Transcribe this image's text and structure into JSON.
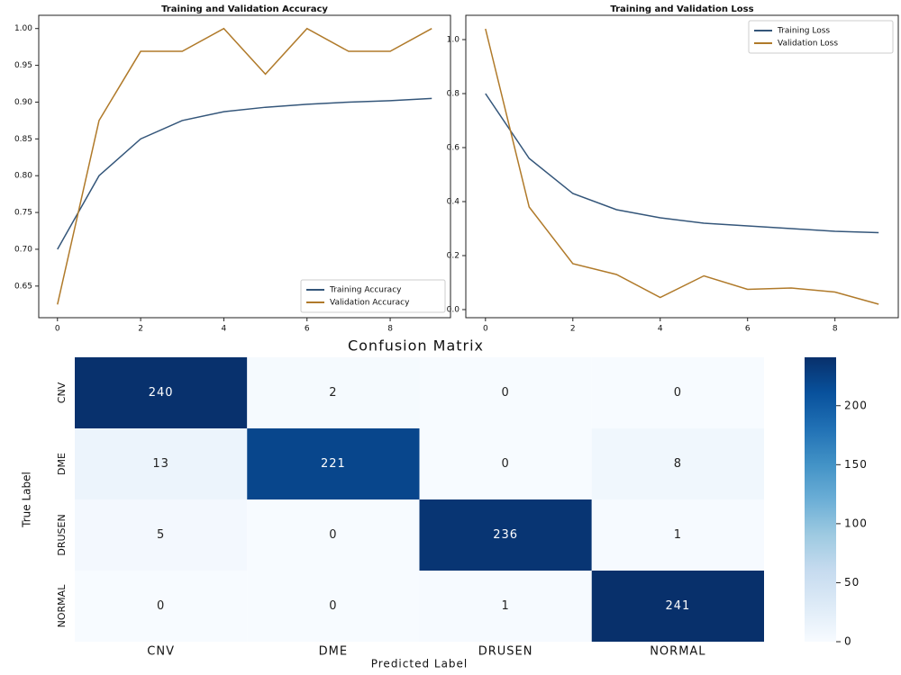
{
  "chart_data": [
    {
      "type": "line",
      "title": "Training and Validation Accuracy",
      "x": [
        0,
        1,
        2,
        3,
        4,
        5,
        6,
        7,
        8,
        9
      ],
      "series": [
        {
          "name": "Training Accuracy",
          "color": "#34567a",
          "values": [
            0.7,
            0.8,
            0.85,
            0.875,
            0.887,
            0.893,
            0.897,
            0.9,
            0.902,
            0.905
          ]
        },
        {
          "name": "Validation Accuracy",
          "color": "#b07a2a",
          "values": [
            0.625,
            0.875,
            0.969,
            0.969,
            1.0,
            0.938,
            1.0,
            0.969,
            0.969,
            1.0
          ]
        }
      ],
      "xlim": [
        -0.45,
        9.45
      ],
      "xticks": [
        0,
        2,
        4,
        6,
        8
      ],
      "ylim": [
        0.607,
        1.018
      ],
      "yticks": [
        0.65,
        {
          "value": 0.7,
          "label": "0.70"
        },
        0.75,
        {
          "value": 0.8,
          "label": "0.80"
        },
        0.85,
        {
          "value": 0.9,
          "label": "0.90"
        },
        0.95,
        {
          "value": 1.0,
          "label": "1.00"
        }
      ],
      "legend": "lower right"
    },
    {
      "type": "line",
      "title": "Training and Validation Loss",
      "x": [
        0,
        1,
        2,
        3,
        4,
        5,
        6,
        7,
        8,
        9
      ],
      "series": [
        {
          "name": "Training Loss",
          "color": "#34567a",
          "values": [
            0.8,
            0.56,
            0.43,
            0.37,
            0.34,
            0.32,
            0.31,
            0.3,
            0.29,
            0.285
          ]
        },
        {
          "name": "Validation Loss",
          "color": "#b07a2a",
          "values": [
            1.04,
            0.38,
            0.17,
            0.13,
            0.045,
            0.125,
            0.075,
            0.08,
            0.065,
            0.02
          ]
        }
      ],
      "xlim": [
        -0.45,
        9.45
      ],
      "xticks": [
        0,
        2,
        4,
        6,
        8
      ],
      "ylim": [
        -0.03,
        1.09
      ],
      "yticks": [
        {
          "value": 0,
          "label": "0.0"
        },
        0.2,
        0.4,
        0.6,
        0.8,
        {
          "value": 1.0,
          "label": "1.0"
        }
      ],
      "legend": "upper right"
    },
    {
      "type": "heatmap",
      "title": "Confusion Matrix",
      "x_label": "Predicted Label",
      "y_label": "True Label",
      "x_categories": [
        "CNV",
        "DME",
        "DRUSEN",
        "NORMAL"
      ],
      "y_categories": [
        "CNV",
        "DME",
        "DRUSEN",
        "NORMAL"
      ],
      "values": [
        [
          240,
          2,
          0,
          0
        ],
        [
          13,
          221,
          0,
          8
        ],
        [
          5,
          0,
          236,
          1
        ],
        [
          0,
          0,
          1,
          241
        ]
      ],
      "colormap": "Blues",
      "colorbar_lim": [
        0,
        241
      ],
      "colorbar_ticks": [
        0,
        50,
        100,
        150,
        200
      ]
    }
  ]
}
